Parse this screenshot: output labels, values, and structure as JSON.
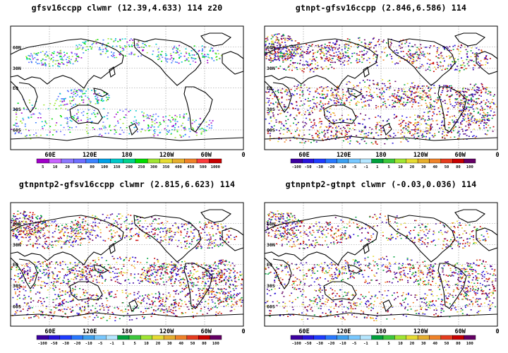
{
  "panels": [
    {
      "title": "gfsv16ccpp  clwmr  (12.39,4.633)  114  z20",
      "lat_labels": [
        "60N",
        "30N",
        "EQ",
        "30S",
        "60S"
      ],
      "lon_labels": [
        "60E",
        "120E",
        "180",
        "120W",
        "60W",
        "0"
      ],
      "colorbar": {
        "labels": [
          "5",
          "10",
          "20",
          "50",
          "80",
          "100",
          "150",
          "200",
          "250",
          "300",
          "350",
          "400",
          "450",
          "500",
          "1000"
        ],
        "colors": [
          "#a000c8",
          "#c864ff",
          "#8c78ff",
          "#6e6eff",
          "#3c82ff",
          "#00a0e6",
          "#00c8c8",
          "#00d28c",
          "#00dc00",
          "#a0e632",
          "#e6dc32",
          "#e6af2d",
          "#f08228",
          "#fa3c3c",
          "#c80000"
        ]
      },
      "palette": [
        "#6e6eff",
        "#3c82ff",
        "#00c8c8",
        "#00dc00",
        "#a0e632",
        "#a000c8"
      ],
      "density": "sparse"
    },
    {
      "title": "gtnpt-gfsv16ccpp  (2.846,6.586)  114",
      "lat_labels": [
        "60N",
        "30N",
        "EQ",
        "30S",
        "60S"
      ],
      "lon_labels": [
        "60E",
        "120E",
        "180",
        "120W",
        "60W",
        "0"
      ],
      "colorbar": {
        "labels": [
          "-100",
          "-50",
          "-30",
          "-20",
          "-10",
          "-5",
          "-1",
          "1",
          "5",
          "10",
          "20",
          "30",
          "40",
          "50",
          "80",
          "100"
        ],
        "colors": [
          "#3c00a0",
          "#2814dc",
          "#1e3cff",
          "#2878ff",
          "#3ca0f0",
          "#78c8ff",
          "#b4e6ff",
          "#00a03c",
          "#3cc83c",
          "#a0e632",
          "#e6dc32",
          "#e6af2d",
          "#f08228",
          "#e63c1e",
          "#c80000",
          "#640064"
        ]
      },
      "palette": [
        "#3c00a0",
        "#2814dc",
        "#c80000",
        "#f08228",
        "#e6dc32",
        "#00a03c",
        "#640064"
      ],
      "density": "dense"
    },
    {
      "title": "gtnpntp2-gfsv16ccpp  clwmr  (2.815,6.623)  114",
      "lat_labels": [
        "60N",
        "30N",
        "EQ",
        "30S",
        "60S"
      ],
      "lon_labels": [
        "60E",
        "120E",
        "180",
        "120W",
        "60W",
        "0"
      ],
      "colorbar": {
        "labels": [
          "-100",
          "-50",
          "-30",
          "-20",
          "-10",
          "-5",
          "-1",
          "1",
          "5",
          "10",
          "20",
          "30",
          "40",
          "50",
          "80",
          "100"
        ],
        "colors": [
          "#3c00a0",
          "#2814dc",
          "#1e3cff",
          "#2878ff",
          "#3ca0f0",
          "#78c8ff",
          "#b4e6ff",
          "#00a03c",
          "#3cc83c",
          "#a0e632",
          "#e6dc32",
          "#e6af2d",
          "#f08228",
          "#e63c1e",
          "#c80000",
          "#640064"
        ]
      },
      "palette": [
        "#3c00a0",
        "#2814dc",
        "#c80000",
        "#f08228",
        "#e6dc32",
        "#00a03c",
        "#640064"
      ],
      "density": "dense"
    },
    {
      "title": "gtnpntp2-gtnpt  clwmr  (-0.03,0.036)  114",
      "lat_labels": [
        "60N",
        "30N",
        "EQ",
        "30S",
        "60S"
      ],
      "lon_labels": [
        "60E",
        "120E",
        "180",
        "120W",
        "60W",
        "0"
      ],
      "colorbar": {
        "labels": [
          "-100",
          "-50",
          "-30",
          "-20",
          "-10",
          "-5",
          "-1",
          "1",
          "5",
          "10",
          "20",
          "30",
          "40",
          "50",
          "80",
          "100"
        ],
        "colors": [
          "#3c00a0",
          "#2814dc",
          "#1e3cff",
          "#2878ff",
          "#3ca0f0",
          "#78c8ff",
          "#b4e6ff",
          "#00a03c",
          "#3cc83c",
          "#a0e632",
          "#e6dc32",
          "#e6af2d",
          "#f08228",
          "#e63c1e",
          "#c80000",
          "#640064"
        ]
      },
      "palette": [
        "#3c00a0",
        "#2814dc",
        "#c80000",
        "#f08228",
        "#e6dc32",
        "#00a03c",
        "#640064"
      ],
      "density": "medium"
    }
  ]
}
